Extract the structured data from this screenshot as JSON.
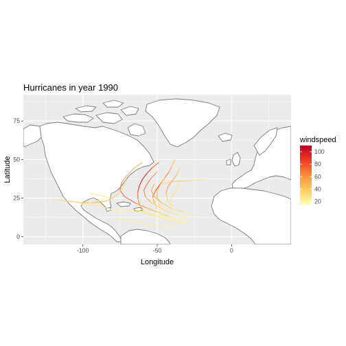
{
  "chart_data": {
    "type": "map-tracks",
    "title": "Hurricanes in year 1990",
    "xlabel": "Longitude",
    "ylabel": "Latitude",
    "xlim": [
      -140,
      40
    ],
    "ylim": [
      -5,
      92
    ],
    "x_ticks": [
      -100,
      -50,
      0
    ],
    "y_ticks": [
      0,
      25,
      50,
      75
    ],
    "grid": true,
    "legend": {
      "title": "windspeed",
      "placement": "right",
      "min": 15,
      "max": 110,
      "ticks": [
        20,
        40,
        60,
        80,
        100
      ],
      "colors": [
        "#ffffb2",
        "#fecc5c",
        "#fd8d3c",
        "#f03b20",
        "#bd0026"
      ]
    },
    "colors": {
      "panel": "#ebebeb",
      "grid": "#ffffff",
      "land": "#ffffff",
      "border": "#7a7a7a"
    },
    "tracks": [
      {
        "points": [
          [
            -58,
            15,
            25
          ],
          [
            -60,
            18,
            40
          ],
          [
            -62,
            21,
            55
          ],
          [
            -63,
            25,
            70
          ],
          [
            -63,
            29,
            85
          ],
          [
            -62,
            33,
            95
          ],
          [
            -60,
            37,
            100
          ],
          [
            -57,
            41,
            95
          ],
          [
            -53,
            45,
            80
          ],
          [
            -49,
            48,
            60
          ]
        ]
      },
      {
        "points": [
          [
            -50,
            18,
            25
          ],
          [
            -52,
            22,
            45
          ],
          [
            -53,
            26,
            65
          ],
          [
            -51,
            30,
            80
          ],
          [
            -48,
            34,
            85
          ],
          [
            -45,
            38,
            75
          ],
          [
            -42,
            42,
            60
          ],
          [
            -40,
            46,
            45
          ],
          [
            -38,
            50,
            35
          ]
        ]
      },
      {
        "points": [
          [
            -35,
            10,
            20
          ],
          [
            -42,
            13,
            30
          ],
          [
            -50,
            16,
            40
          ],
          [
            -58,
            19,
            55
          ],
          [
            -65,
            22,
            70
          ],
          [
            -72,
            26,
            80
          ],
          [
            -75,
            30,
            75
          ],
          [
            -74,
            35,
            65
          ],
          [
            -70,
            40,
            55
          ],
          [
            -65,
            45,
            50
          ],
          [
            -60,
            48,
            45
          ]
        ]
      },
      {
        "points": [
          [
            -45,
            15,
            20
          ],
          [
            -48,
            20,
            30
          ],
          [
            -50,
            25,
            40
          ],
          [
            -50,
            30,
            50
          ],
          [
            -47,
            35,
            45
          ],
          [
            -44,
            40,
            35
          ]
        ]
      },
      {
        "points": [
          [
            -30,
            12,
            20
          ],
          [
            -36,
            14,
            25
          ],
          [
            -42,
            16,
            30
          ],
          [
            -48,
            19,
            35
          ],
          [
            -54,
            22,
            45
          ],
          [
            -58,
            26,
            60
          ],
          [
            -59,
            30,
            70
          ],
          [
            -57,
            34,
            75
          ],
          [
            -54,
            38,
            65
          ],
          [
            -50,
            42,
            55
          ]
        ]
      },
      {
        "points": [
          [
            -40,
            20,
            25
          ],
          [
            -43,
            24,
            35
          ],
          [
            -44,
            28,
            50
          ],
          [
            -43,
            32,
            60
          ],
          [
            -40,
            36,
            55
          ],
          [
            -37,
            40,
            45
          ],
          [
            -35,
            44,
            35
          ]
        ]
      },
      {
        "points": [
          [
            -75,
            15,
            20
          ],
          [
            -82,
            18,
            25
          ],
          [
            -89,
            20,
            30
          ],
          [
            -96,
            21,
            25
          ],
          [
            -102,
            22,
            20
          ]
        ]
      },
      {
        "points": [
          [
            -25,
            14,
            20
          ],
          [
            -32,
            16,
            25
          ],
          [
            -40,
            18,
            35
          ],
          [
            -47,
            22,
            45
          ],
          [
            -52,
            26,
            55
          ],
          [
            -54,
            30,
            50
          ],
          [
            -52,
            34,
            45
          ]
        ]
      },
      {
        "points": [
          [
            -80,
            24,
            20
          ],
          [
            -85,
            26,
            25
          ],
          [
            -90,
            27,
            30
          ],
          [
            -95,
            28,
            25
          ]
        ]
      },
      {
        "points": [
          [
            -120,
            24,
            25
          ],
          [
            -110,
            23,
            35
          ],
          [
            -100,
            22,
            45
          ],
          [
            -92,
            22,
            50
          ],
          [
            -85,
            23,
            45
          ],
          [
            -80,
            25,
            40
          ],
          [
            -76,
            28,
            35
          ],
          [
            -73,
            32,
            30
          ],
          [
            -70,
            36,
            25
          ]
        ]
      },
      {
        "points": [
          [
            -30,
            8,
            20
          ],
          [
            -38,
            10,
            20
          ],
          [
            -46,
            12,
            25
          ],
          [
            -54,
            14,
            25
          ],
          [
            -62,
            16,
            25
          ],
          [
            -70,
            17,
            20
          ],
          [
            -78,
            18,
            20
          ]
        ]
      },
      {
        "points": [
          [
            -38,
            6,
            20
          ],
          [
            -48,
            7,
            20
          ],
          [
            -58,
            8,
            25
          ],
          [
            -68,
            10,
            25
          ],
          [
            -78,
            12,
            20
          ]
        ]
      },
      {
        "points": [
          [
            -28,
            10,
            20
          ],
          [
            -35,
            11,
            20
          ],
          [
            -43,
            12,
            20
          ],
          [
            -52,
            14,
            25
          ],
          [
            -60,
            16,
            25
          ],
          [
            -66,
            18,
            30
          ]
        ]
      },
      {
        "points": [
          [
            -48,
            34,
            30
          ],
          [
            -43,
            35,
            35
          ],
          [
            -37,
            36,
            40
          ],
          [
            -30,
            36,
            35
          ],
          [
            -24,
            37,
            30
          ],
          [
            -18,
            37,
            25
          ]
        ]
      },
      {
        "points": [
          [
            -40,
            18,
            20
          ],
          [
            -42,
            22,
            25
          ],
          [
            -40,
            26,
            30
          ],
          [
            -37,
            30,
            30
          ],
          [
            -35,
            34,
            25
          ]
        ]
      },
      {
        "points": [
          [
            -100,
            20,
            20
          ],
          [
            -95,
            22,
            25
          ],
          [
            -90,
            23,
            25
          ],
          [
            -86,
            24,
            20
          ]
        ]
      }
    ]
  }
}
